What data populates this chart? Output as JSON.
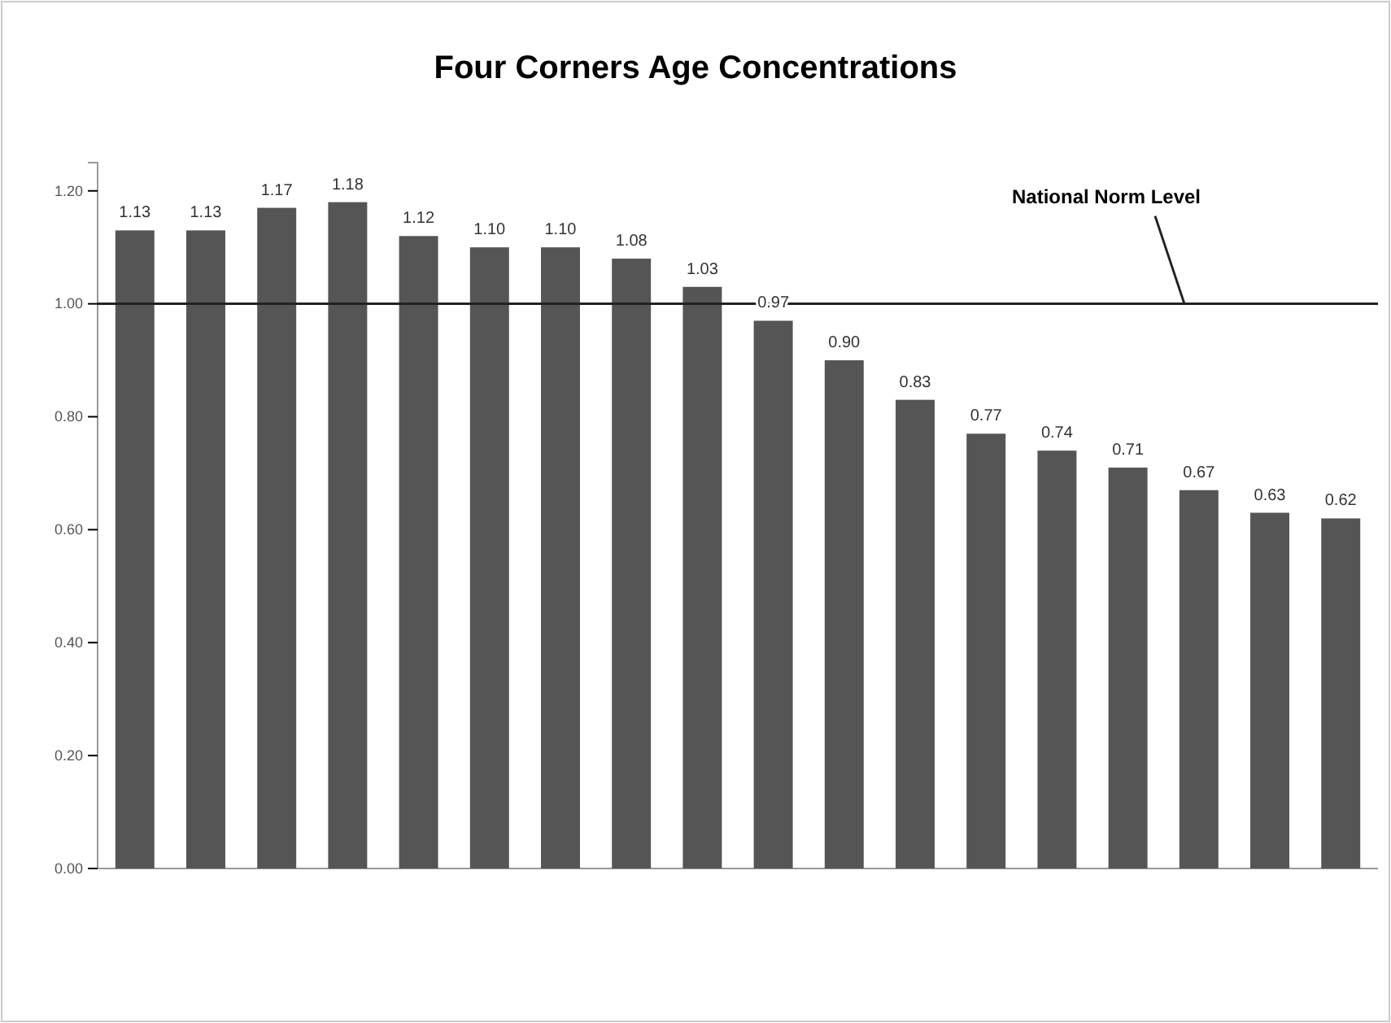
{
  "chart_data": {
    "type": "bar",
    "title": "Four Corners Age Concentrations",
    "categories": [
      null,
      null,
      null,
      null,
      null,
      null,
      null,
      null,
      null,
      null,
      null,
      null,
      null,
      null,
      null,
      null,
      null,
      null
    ],
    "values": [
      1.13,
      1.13,
      1.17,
      1.18,
      1.12,
      1.1,
      1.1,
      1.08,
      1.03,
      0.97,
      0.9,
      0.83,
      0.77,
      0.74,
      0.71,
      0.67,
      0.63,
      0.62
    ],
    "color": "#555555",
    "value_labels": [
      "1.13",
      "1.13",
      "1.17",
      "1.18",
      "1.12",
      "1.10",
      "1.10",
      "1.08",
      "1.03",
      "0.97",
      "0.90",
      "0.83",
      "0.77",
      "0.74",
      "0.71",
      "0.67",
      "0.63",
      "0.62"
    ],
    "ylim": [
      0,
      1.25
    ],
    "yticks": [
      {
        "value": 0,
        "label": "0.00"
      },
      {
        "value": 0.2,
        "label": "0.20"
      },
      {
        "value": 0.4,
        "label": "0.40"
      },
      {
        "value": 0.6,
        "label": "0.60"
      },
      {
        "value": 0.8,
        "label": "0.80"
      },
      {
        "value": 1,
        "label": "1.00"
      },
      {
        "value": 1.2,
        "label": "1.20"
      }
    ],
    "grid": false,
    "ref_lines": [
      {
        "axis": "y",
        "value": 1,
        "label": "National Norm Level",
        "color": "#222222"
      }
    ]
  }
}
